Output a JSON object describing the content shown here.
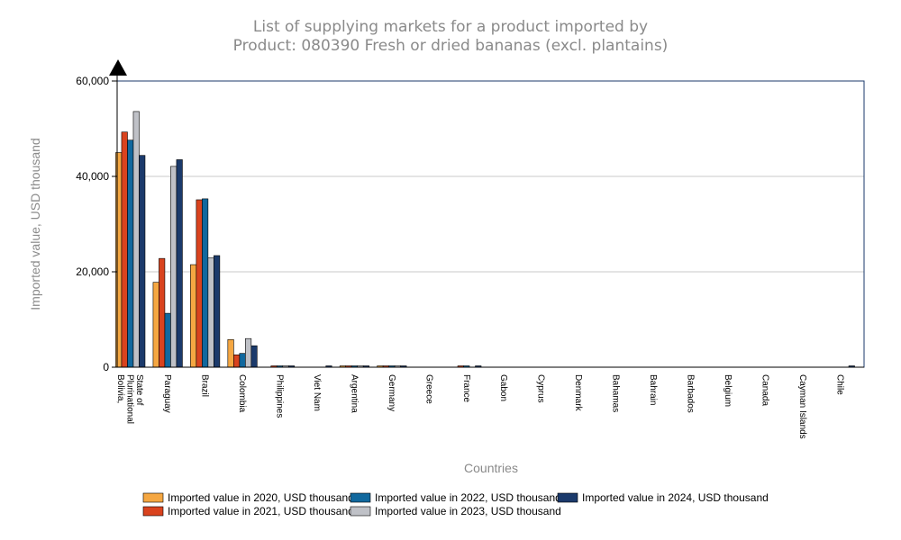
{
  "chart_data": {
    "type": "bar",
    "title": [
      "List of supplying markets for a product imported by",
      "Product: 080390 Fresh or dried bananas (excl. plantains)"
    ],
    "xlabel": "Countries",
    "ylabel": "Imported value, USD thousand",
    "ylim": [
      0,
      60000
    ],
    "yticks": [
      0,
      20000,
      40000,
      60000
    ],
    "ytick_labels": [
      "0",
      "20,000",
      "40,000",
      "60,000"
    ],
    "grid": true,
    "legend_position": "bottom",
    "categories": [
      [
        "Bolivia,",
        "Plurinational",
        "State of"
      ],
      [
        "Paraguay"
      ],
      [
        "Brazil"
      ],
      [
        "Colombia"
      ],
      [
        "Philippines"
      ],
      [
        "Viet Nam"
      ],
      [
        "Argentina"
      ],
      [
        "Germany"
      ],
      [
        "Greece"
      ],
      [
        "France"
      ],
      [
        "Gabon"
      ],
      [
        "Cyprus"
      ],
      [
        "Denmark"
      ],
      [
        "Bahamas"
      ],
      [
        "Bahrain"
      ],
      [
        "Barbados"
      ],
      [
        "Belgium"
      ],
      [
        "Canada"
      ],
      [
        "Cayman Islands"
      ],
      [
        "Chile"
      ]
    ],
    "series": [
      {
        "name": "Imported value in 2020, USD thousand",
        "color": "#f5a742",
        "values": [
          45000,
          17800,
          21500,
          5800,
          0,
          0,
          50,
          40,
          0,
          0,
          0,
          0,
          0,
          0,
          0,
          0,
          0,
          0,
          0,
          0
        ]
      },
      {
        "name": "Imported value in 2021, USD thousand",
        "color": "#d9431e",
        "values": [
          49300,
          22800,
          35100,
          2600,
          150,
          0,
          100,
          60,
          0,
          120,
          0,
          0,
          0,
          0,
          0,
          0,
          0,
          0,
          0,
          0
        ]
      },
      {
        "name": "Imported value in 2022, USD thousand",
        "color": "#11689e",
        "values": [
          47600,
          11300,
          35300,
          2900,
          200,
          0,
          120,
          80,
          0,
          50,
          0,
          0,
          0,
          0,
          0,
          0,
          0,
          0,
          0,
          0
        ]
      },
      {
        "name": "Imported value in 2023, USD thousand",
        "color": "#bfc1c7",
        "values": [
          53600,
          42100,
          22900,
          6000,
          250,
          0,
          100,
          200,
          0,
          0,
          0,
          0,
          0,
          0,
          0,
          0,
          0,
          0,
          0,
          0
        ]
      },
      {
        "name": "Imported value in 2024, USD thousand",
        "color": "#1b3a6b",
        "values": [
          44400,
          43500,
          23400,
          4500,
          200,
          150,
          150,
          100,
          0,
          150,
          0,
          0,
          0,
          0,
          0,
          0,
          0,
          0,
          0,
          150
        ]
      }
    ]
  }
}
